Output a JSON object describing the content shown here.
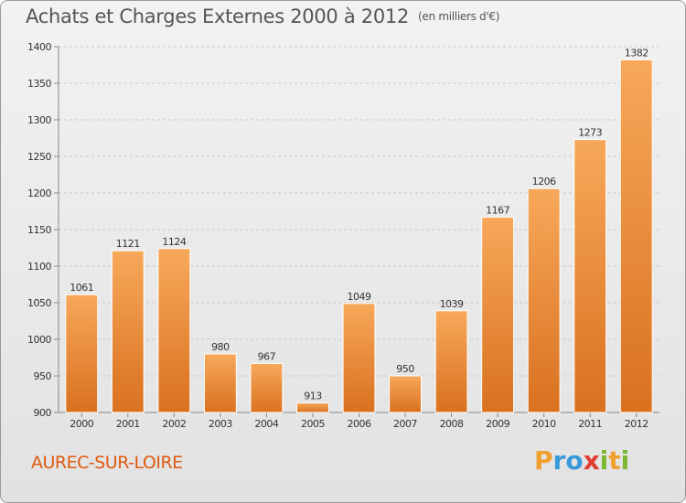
{
  "title": "Achats et Charges Externes 2000 à 2012",
  "subtitle": "(en milliers d'€)",
  "commune": "AUREC-SUR-LOIRE",
  "brand": {
    "letters": [
      "P",
      "r",
      "o",
      "x",
      "i",
      "t",
      "i"
    ],
    "colors": [
      "#f0a030",
      "#3a9ad9",
      "#3a9ad9",
      "#e03c31",
      "#7cb82f",
      "#f0a030",
      "#7cb82f"
    ]
  },
  "colors": {
    "bar_top": "#f7a85a",
    "bar_bottom": "#d9711f",
    "title": "#555555",
    "commune": "#e05a10"
  },
  "chart_data": {
    "type": "bar",
    "categories": [
      "2000",
      "2001",
      "2002",
      "2003",
      "2004",
      "2005",
      "2006",
      "2007",
      "2008",
      "2009",
      "2010",
      "2011",
      "2012"
    ],
    "values": [
      1061,
      1121,
      1124,
      980,
      967,
      913,
      1049,
      950,
      1039,
      1167,
      1206,
      1273,
      1382
    ],
    "ylim": [
      900,
      1400
    ],
    "yticks": [
      900,
      950,
      1000,
      1050,
      1100,
      1150,
      1200,
      1250,
      1300,
      1350,
      1400
    ],
    "grid": true,
    "xlabel": "",
    "ylabel": ""
  }
}
